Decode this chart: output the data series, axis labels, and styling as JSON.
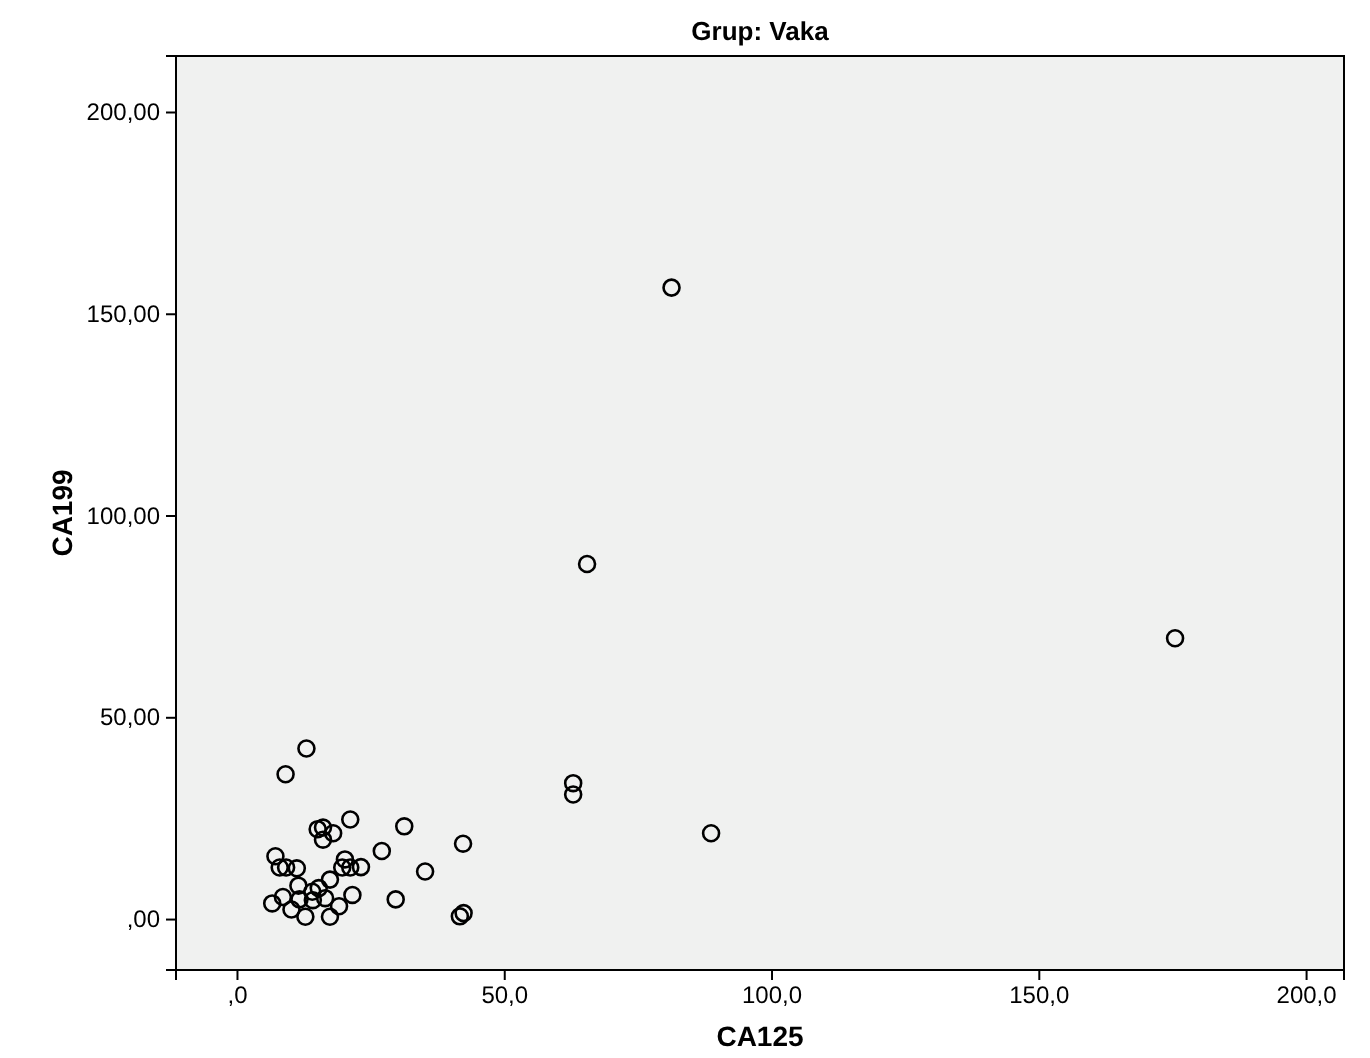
{
  "chart_data": {
    "type": "scatter",
    "title": "Grup: Vaka",
    "xlabel": "CA125",
    "ylabel": "CA199",
    "marker": "circle",
    "xlim": [
      -11.5,
      207
    ],
    "ylim": [
      -12.5,
      214
    ],
    "xticks": [
      {
        "value": 0,
        "label": ",0"
      },
      {
        "value": 50,
        "label": "50,0"
      },
      {
        "value": 100,
        "label": "100,0"
      },
      {
        "value": 150,
        "label": "150,0"
      },
      {
        "value": 200,
        "label": "200,0"
      }
    ],
    "yticks": [
      {
        "value": 0,
        "label": ",00"
      },
      {
        "value": 50,
        "label": "50,00"
      },
      {
        "value": 100,
        "label": "100,00"
      },
      {
        "value": 150,
        "label": "150,00"
      },
      {
        "value": 200,
        "label": "200,00"
      }
    ],
    "series": [
      {
        "color": "#000000",
        "x": [
          12.9,
          9.0,
          21.1,
          31.2,
          15.0,
          16.0,
          17.9,
          16.0,
          42.2,
          27.0,
          7.1,
          20.1,
          7.9,
          9.1,
          11.1,
          19.6,
          21.1,
          23.1,
          35.1,
          17.3,
          11.4,
          15.2,
          14.0,
          21.5,
          8.5,
          11.6,
          14.1,
          16.4,
          6.5,
          19.0,
          29.6,
          10.1,
          12.7,
          17.3,
          41.6,
          42.3,
          62.8,
          62.8,
          81.2,
          65.4,
          175.4,
          88.6
        ],
        "values": [
          42.4,
          36.0,
          24.8,
          23.1,
          22.4,
          22.8,
          21.4,
          19.8,
          18.8,
          17.0,
          15.7,
          14.9,
          12.9,
          12.9,
          12.7,
          12.9,
          12.9,
          13.0,
          11.9,
          9.9,
          8.4,
          7.8,
          6.9,
          6.1,
          5.6,
          5.0,
          4.8,
          5.3,
          4.0,
          3.3,
          5.0,
          2.5,
          0.7,
          0.7,
          0.8,
          1.6,
          33.8,
          31.0,
          156.6,
          88.1,
          69.7,
          21.4
        ]
      }
    ]
  }
}
